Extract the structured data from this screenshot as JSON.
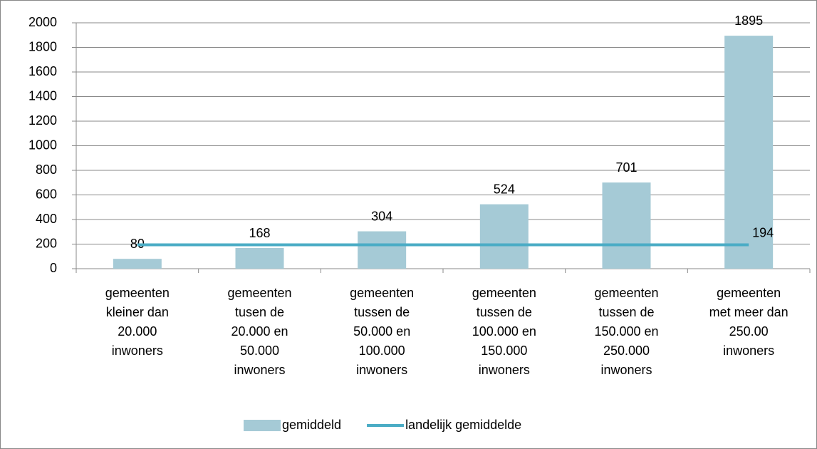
{
  "chart_data": {
    "type": "bar",
    "categories": [
      "gemeenten kleiner dan 20.000 inwoners",
      "gemeenten tusen de 20.000 en 50.000 inwoners",
      "gemeenten tussen de 50.000 en 100.000 inwoners",
      "gemeenten tussen de 100.000 en 150.000 inwoners",
      "gemeenten tussen de 150.000 en 250.000 inwoners",
      "gemeenten met meer dan 250.00 inwoners"
    ],
    "series": [
      {
        "name": "gemiddeld",
        "type": "bar",
        "color": "#a5cad6",
        "values": [
          80,
          168,
          304,
          524,
          701,
          1895
        ]
      },
      {
        "name": "landelijk gemiddelde",
        "type": "line",
        "color": "#4aacc5",
        "values": [
          194,
          194,
          194,
          194,
          194,
          194
        ]
      }
    ],
    "ylim": [
      0,
      2000
    ],
    "yticks": [
      0,
      200,
      400,
      600,
      800,
      1000,
      1200,
      1400,
      1600,
      1800,
      2000
    ],
    "grid": true,
    "legend": "bottom"
  }
}
